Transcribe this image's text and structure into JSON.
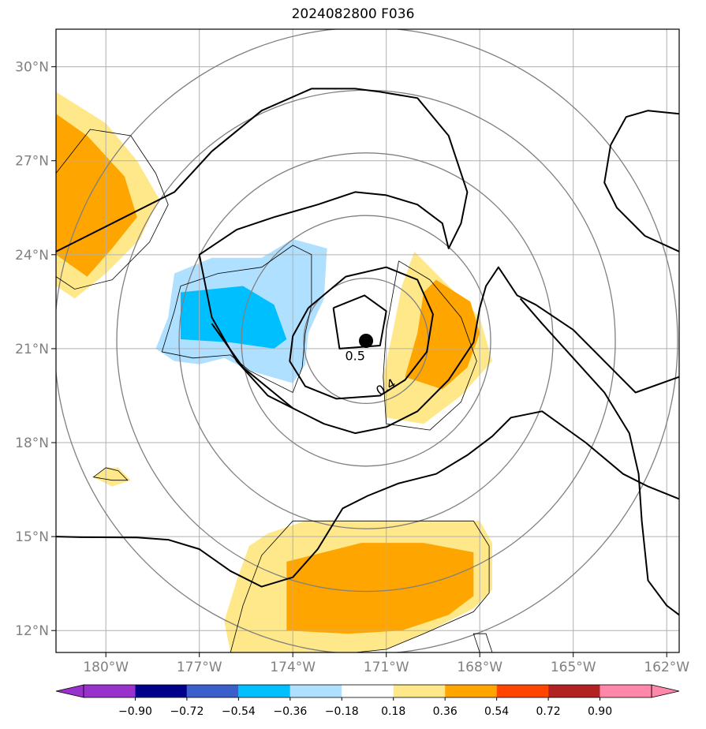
{
  "chart_data": {
    "type": "map",
    "title": "2024082800 F036",
    "xlim": [
      -181.6,
      -161.6
    ],
    "ylim": [
      11.3,
      31.2
    ],
    "x_ticks": [
      {
        "value": -180,
        "label": "180°W"
      },
      {
        "value": -177,
        "label": "177°W"
      },
      {
        "value": -174,
        "label": "174°W"
      },
      {
        "value": -171,
        "label": "171°W"
      },
      {
        "value": -168,
        "label": "168°W"
      },
      {
        "value": -165,
        "label": "165°W"
      },
      {
        "value": -162,
        "label": "162°W"
      }
    ],
    "y_ticks": [
      {
        "value": 12,
        "label": "12°N"
      },
      {
        "value": 15,
        "label": "15°N"
      },
      {
        "value": 18,
        "label": "18°N"
      },
      {
        "value": 21,
        "label": "21°N"
      },
      {
        "value": 24,
        "label": "24°N"
      },
      {
        "value": 27,
        "label": "27°N"
      },
      {
        "value": 30,
        "label": "30°N"
      }
    ],
    "grid": true,
    "colorbar": {
      "levels": [
        -0.9,
        -0.72,
        -0.54,
        -0.36,
        -0.18,
        0.18,
        0.36,
        0.54,
        0.72,
        0.9
      ],
      "tick_labels": [
        "−0.90",
        "−0.72",
        "−0.54",
        "−0.36",
        "−0.18",
        "0.18",
        "0.36",
        "0.54",
        "0.72",
        "0.90"
      ],
      "colors": [
        "#9932cc",
        "#00008b",
        "#3a5fcd",
        "#00bfff",
        "#b0e0ff",
        "#ffffff",
        "#ffe88a",
        "#ffa500",
        "#ff4500",
        "#b22222",
        "#ff88aa"
      ],
      "extend": "both"
    },
    "center_marker": {
      "lon": -171.65,
      "lat": 21.25
    },
    "range_rings_center": {
      "lon": -171.65,
      "lat": 21.25
    },
    "range_ring_radii_deg": [
      2,
      4,
      6,
      8,
      10
    ],
    "contour_labels": [
      {
        "text": "0.5",
        "lon": -172.0,
        "lat": 20.75
      },
      {
        "text": "0.4",
        "lon": -171.0,
        "lat": 19.75
      }
    ],
    "shaded_regions": [
      {
        "level": "0.18",
        "color": "#ffe88a",
        "polygon": [
          [
            -181.6,
            29.2
          ],
          [
            -180.0,
            28.2
          ],
          [
            -179.0,
            27.0
          ],
          [
            -178.3,
            25.8
          ],
          [
            -178.9,
            24.5
          ],
          [
            -180.0,
            23.4
          ],
          [
            -181.0,
            22.6
          ],
          [
            -181.6,
            23.0
          ]
        ]
      },
      {
        "level": "0.36",
        "color": "#ffa500",
        "polygon": [
          [
            -181.6,
            28.5
          ],
          [
            -180.6,
            27.8
          ],
          [
            -179.4,
            26.5
          ],
          [
            -179.0,
            25.2
          ],
          [
            -179.8,
            24.2
          ],
          [
            -180.6,
            23.3
          ],
          [
            -181.6,
            24.0
          ]
        ]
      },
      {
        "level": "-0.18",
        "color": "#b0e0ff",
        "polygon": [
          [
            -177.8,
            23.4
          ],
          [
            -176.6,
            23.9
          ],
          [
            -175.0,
            23.9
          ],
          [
            -174.0,
            24.5
          ],
          [
            -172.9,
            24.2
          ],
          [
            -173.0,
            22.6
          ],
          [
            -173.5,
            21.5
          ],
          [
            -173.6,
            20.5
          ],
          [
            -174.0,
            19.9
          ],
          [
            -175.4,
            20.3
          ],
          [
            -176.2,
            20.7
          ],
          [
            -177.0,
            20.5
          ],
          [
            -177.8,
            20.6
          ],
          [
            -178.4,
            21.0
          ],
          [
            -178.0,
            22.0
          ]
        ]
      },
      {
        "level": "-0.36",
        "color": "#00bfff",
        "polygon": [
          [
            -177.6,
            22.8
          ],
          [
            -175.6,
            23.0
          ],
          [
            -174.6,
            22.4
          ],
          [
            -174.2,
            21.3
          ],
          [
            -174.6,
            21.0
          ],
          [
            -176.0,
            21.2
          ],
          [
            -177.6,
            21.3
          ]
        ]
      },
      {
        "level": "0.18",
        "color": "#ffe88a",
        "polygon": [
          [
            -170.1,
            24.1
          ],
          [
            -169.4,
            23.4
          ],
          [
            -168.0,
            22.0
          ],
          [
            -167.6,
            20.6
          ],
          [
            -168.6,
            19.5
          ],
          [
            -169.8,
            18.6
          ],
          [
            -171.0,
            18.8
          ],
          [
            -171.1,
            20.1
          ],
          [
            -170.8,
            21.5
          ],
          [
            -170.5,
            23.0
          ]
        ]
      },
      {
        "level": "0.36",
        "color": "#ffa500",
        "polygon": [
          [
            -169.4,
            23.2
          ],
          [
            -168.3,
            22.5
          ],
          [
            -168.0,
            21.5
          ],
          [
            -168.4,
            20.4
          ],
          [
            -169.2,
            19.7
          ],
          [
            -170.4,
            20.1
          ],
          [
            -170.0,
            21.5
          ],
          [
            -169.8,
            22.8
          ]
        ]
      },
      {
        "level": "0.18",
        "color": "#ffe88a",
        "polygon": [
          [
            -180.0,
            17.2
          ],
          [
            -179.6,
            17.2
          ],
          [
            -179.2,
            16.8
          ],
          [
            -179.8,
            16.6
          ],
          [
            -180.4,
            16.9
          ]
        ]
      },
      {
        "level": "0.18",
        "color": "#ffe88a",
        "polygon": [
          [
            -173.6,
            15.5
          ],
          [
            -171.0,
            15.5
          ],
          [
            -168.0,
            15.5
          ],
          [
            -167.6,
            14.8
          ],
          [
            -167.6,
            13.3
          ],
          [
            -168.2,
            12.7
          ],
          [
            -169.6,
            12.0
          ],
          [
            -171.0,
            11.4
          ],
          [
            -172.0,
            11.3
          ],
          [
            -176.0,
            11.3
          ],
          [
            -176.2,
            12.3
          ],
          [
            -175.8,
            13.6
          ],
          [
            -175.4,
            14.7
          ],
          [
            -174.8,
            15.1
          ]
        ]
      },
      {
        "level": "0.36",
        "color": "#ffa500",
        "polygon": [
          [
            -174.2,
            14.2
          ],
          [
            -171.8,
            14.8
          ],
          [
            -169.8,
            14.8
          ],
          [
            -168.2,
            14.5
          ],
          [
            -168.2,
            13.1
          ],
          [
            -169.0,
            12.5
          ],
          [
            -170.5,
            12.0
          ],
          [
            -172.2,
            11.9
          ],
          [
            -174.2,
            12.0
          ],
          [
            -174.2,
            13.2
          ]
        ]
      }
    ],
    "thick_contours": [
      [
        [
          -181.6,
          24.1
        ],
        [
          -179.4,
          25.2
        ],
        [
          -177.8,
          26.0
        ],
        [
          -176.6,
          27.3
        ],
        [
          -175.0,
          28.6
        ],
        [
          -173.4,
          29.3
        ],
        [
          -172.0,
          29.3
        ],
        [
          -171.2,
          29.2
        ],
        [
          -170.0,
          29.0
        ],
        [
          -169.0,
          27.8
        ],
        [
          -168.8,
          27.2
        ],
        [
          -168.4,
          26.0
        ],
        [
          -168.6,
          25.0
        ],
        [
          -169.0,
          24.2
        ],
        [
          -169.2,
          25.0
        ],
        [
          -170.0,
          25.6
        ],
        [
          -171.0,
          25.9
        ],
        [
          -172.0,
          26.0
        ],
        [
          -173.2,
          25.6
        ],
        [
          -174.6,
          25.2
        ],
        [
          -175.8,
          24.8
        ],
        [
          -177.0,
          24.0
        ],
        [
          -176.9,
          23.5
        ],
        [
          -176.6,
          22.0
        ],
        [
          -175.8,
          20.6
        ],
        [
          -174.8,
          19.5
        ],
        [
          -174.0,
          19.1
        ]
      ],
      [
        [
          -174.0,
          19.1
        ],
        [
          -173.0,
          18.6
        ],
        [
          -172.0,
          18.3
        ],
        [
          -171.0,
          18.5
        ],
        [
          -170.0,
          19.0
        ],
        [
          -169.0,
          20.0
        ],
        [
          -168.2,
          21.2
        ],
        [
          -168.0,
          22.3
        ],
        [
          -167.8,
          23.0
        ],
        [
          -167.4,
          23.6
        ],
        [
          -166.8,
          22.7
        ],
        [
          -166.2,
          22.4
        ],
        [
          -165.0,
          21.6
        ],
        [
          -164.0,
          20.6
        ],
        [
          -163.0,
          19.6
        ],
        [
          -161.6,
          20.1
        ]
      ],
      [
        [
          -174.0,
          19.1
        ],
        [
          -175.6,
          20.4
        ],
        [
          -176.6,
          21.8
        ]
      ],
      [
        [
          -173.5,
          22.3
        ],
        [
          -172.3,
          23.3
        ],
        [
          -171.0,
          23.6
        ],
        [
          -170.0,
          23.2
        ],
        [
          -169.5,
          22.1
        ],
        [
          -169.7,
          20.9
        ],
        [
          -170.4,
          20.0
        ],
        [
          -171.2,
          19.5
        ],
        [
          -172.6,
          19.4
        ],
        [
          -173.6,
          19.8
        ],
        [
          -174.1,
          20.6
        ],
        [
          -174.0,
          21.4
        ],
        [
          -173.5,
          22.3
        ]
      ],
      [
        [
          -172.7,
          22.3
        ],
        [
          -171.7,
          22.7
        ],
        [
          -171.0,
          22.2
        ],
        [
          -171.2,
          21.1
        ],
        [
          -172.5,
          21.0
        ],
        [
          -172.7,
          22.3
        ]
      ],
      [
        [
          -181.6,
          15.0
        ],
        [
          -180.8,
          14.98
        ],
        [
          -179.0,
          14.97
        ],
        [
          -178.0,
          14.9
        ],
        [
          -177.0,
          14.6
        ],
        [
          -176.0,
          13.9
        ],
        [
          -175.0,
          13.4
        ],
        [
          -174.0,
          13.7
        ],
        [
          -173.2,
          14.6
        ],
        [
          -172.4,
          15.9
        ],
        [
          -171.6,
          16.3
        ],
        [
          -170.6,
          16.7
        ],
        [
          -169.4,
          17.0
        ],
        [
          -168.4,
          17.6
        ],
        [
          -167.6,
          18.2
        ],
        [
          -167.0,
          18.8
        ],
        [
          -166.0,
          19.0
        ],
        [
          -164.6,
          18.0
        ],
        [
          -163.4,
          17.0
        ],
        [
          -162.6,
          16.6
        ],
        [
          -161.6,
          16.2
        ]
      ],
      [
        [
          -166.7,
          22.6
        ],
        [
          -166.0,
          21.8
        ],
        [
          -164.0,
          19.6
        ],
        [
          -163.2,
          18.3
        ],
        [
          -162.9,
          17.0
        ],
        [
          -162.8,
          15.5
        ],
        [
          -162.6,
          13.6
        ],
        [
          -162.0,
          12.8
        ],
        [
          -161.6,
          12.5
        ]
      ],
      [
        [
          -163.8,
          27.5
        ],
        [
          -163.3,
          28.4
        ],
        [
          -162.6,
          28.6
        ],
        [
          -161.6,
          28.5
        ]
      ],
      [
        [
          -163.8,
          27.5
        ],
        [
          -164.0,
          26.3
        ],
        [
          -163.6,
          25.5
        ],
        [
          -162.7,
          24.6
        ],
        [
          -161.6,
          24.1
        ]
      ]
    ],
    "thin_contours": [
      [
        [
          -177.6,
          23.0
        ],
        [
          -176.4,
          23.4
        ],
        [
          -175.0,
          23.6
        ],
        [
          -174.0,
          24.3
        ],
        [
          -173.4,
          24.0
        ],
        [
          -173.4,
          22.4
        ],
        [
          -173.6,
          21.5
        ],
        [
          -173.7,
          20.4
        ],
        [
          -174.0,
          19.6
        ],
        [
          -175.4,
          20.3
        ],
        [
          -176.0,
          20.8
        ],
        [
          -177.2,
          20.7
        ],
        [
          -178.2,
          20.9
        ],
        [
          -177.8,
          22.2
        ],
        [
          -177.6,
          23.0
        ]
      ],
      [
        [
          -170.6,
          23.8
        ],
        [
          -169.6,
          23.2
        ],
        [
          -168.6,
          22.0
        ],
        [
          -168.1,
          20.6
        ],
        [
          -168.6,
          19.3
        ],
        [
          -169.6,
          18.4
        ],
        [
          -171.0,
          18.6
        ],
        [
          -171.1,
          20.1
        ],
        [
          -171.0,
          21.6
        ],
        [
          -170.6,
          23.8
        ]
      ],
      [
        [
          -180.0,
          17.2
        ],
        [
          -179.6,
          17.1
        ],
        [
          -179.3,
          16.8
        ],
        [
          -179.8,
          16.8
        ],
        [
          -180.4,
          16.9
        ],
        [
          -180.0,
          17.2
        ]
      ],
      [
        [
          -181.6,
          26.6
        ],
        [
          -180.5,
          28.0
        ],
        [
          -179.2,
          27.8
        ],
        [
          -178.4,
          26.6
        ],
        [
          -178.0,
          25.6
        ],
        [
          -178.6,
          24.4
        ],
        [
          -179.8,
          23.2
        ],
        [
          -181.0,
          22.9
        ],
        [
          -181.6,
          23.3
        ]
      ],
      [
        [
          -174.0,
          15.5
        ],
        [
          -171.0,
          15.5
        ],
        [
          -168.2,
          15.5
        ],
        [
          -167.7,
          14.7
        ],
        [
          -167.7,
          13.2
        ],
        [
          -168.2,
          12.6
        ],
        [
          -169.8,
          11.9
        ],
        [
          -171.0,
          11.4
        ],
        [
          -172.0,
          11.3
        ],
        [
          -176.0,
          11.3
        ],
        [
          -175.6,
          12.8
        ],
        [
          -175.0,
          14.4
        ],
        [
          -174.0,
          15.5
        ]
      ],
      [
        [
          -168.0,
          11.3
        ],
        [
          -168.2,
          11.9
        ],
        [
          -167.8,
          11.9
        ],
        [
          -167.6,
          11.3
        ]
      ]
    ]
  }
}
